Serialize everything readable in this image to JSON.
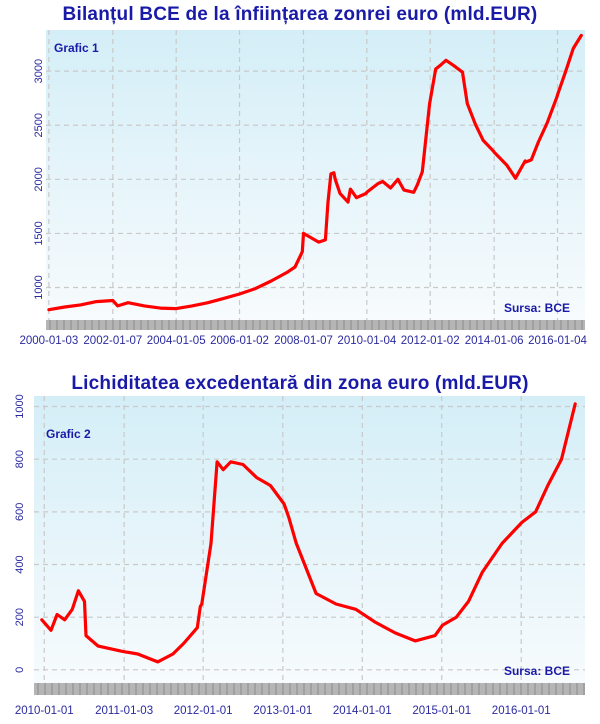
{
  "colors": {
    "line": "#ff0000",
    "plot_bg_top": "#d4eef7",
    "plot_bg_bottom": "#f7fbfd",
    "grid": "#c9c9c9",
    "axis_band": "#b5b5b5",
    "text": "#1a1aa8"
  },
  "chart_data": [
    {
      "type": "line",
      "title": "Bilanțul BCE de la înființarea zonrei euro (mld.EUR)",
      "panel_label": "Grafic 1",
      "source_note": "Sursa: BCE",
      "xlabel": "",
      "ylabel": "",
      "x_ticks": [
        "2000-01-03",
        "2002-01-07",
        "2004-01-05",
        "2006-01-02",
        "2008-01-07",
        "2010-01-04",
        "2012-01-02",
        "2014-01-06",
        "2016-01-04"
      ],
      "y_ticks": [
        1000,
        1500,
        2000,
        2500,
        3000
      ],
      "ylim": [
        700,
        3380
      ],
      "xlim": [
        "1999-12-01",
        "2016-11-15"
      ],
      "grid": true,
      "series": [
        {
          "x": [
            "2000-01-03",
            "2000-07-03",
            "2001-01-01",
            "2001-07-02",
            "2002-01-07",
            "2002-03-04",
            "2002-07-01",
            "2003-01-06",
            "2003-07-07",
            "2004-01-05",
            "2004-07-05",
            "2005-01-03",
            "2005-07-04",
            "2006-01-02",
            "2006-07-03",
            "2007-01-01",
            "2007-07-02",
            "2007-10-01",
            "2007-12-24",
            "2008-01-07",
            "2008-06-30",
            "2008-09-15",
            "2008-10-13",
            "2008-11-17",
            "2008-12-22",
            "2009-01-05",
            "2009-03-02",
            "2009-06-01",
            "2009-06-29",
            "2009-09-07",
            "2009-12-28",
            "2010-01-04",
            "2010-05-10",
            "2010-07-05",
            "2010-10-04",
            "2010-12-27",
            "2011-03-07",
            "2011-06-27",
            "2011-08-08",
            "2011-10-03",
            "2011-12-26",
            "2012-01-02",
            "2012-03-05",
            "2012-05-07",
            "2012-07-02",
            "2012-10-01",
            "2013-01-07",
            "2013-03-04",
            "2013-06-03",
            "2013-09-02",
            "2013-12-30",
            "2014-01-06",
            "2014-06-02",
            "2014-09-08",
            "2014-12-29",
            "2015-01-05",
            "2015-03-09",
            "2015-06-01",
            "2015-09-07",
            "2015-12-28",
            "2016-01-04",
            "2016-04-04",
            "2016-07-04",
            "2016-10-03"
          ],
          "values": [
            795,
            820,
            840,
            870,
            880,
            830,
            860,
            830,
            810,
            805,
            830,
            860,
            900,
            940,
            990,
            1060,
            1140,
            1190,
            1330,
            1500,
            1420,
            1440,
            1780,
            2050,
            2060,
            2000,
            1870,
            1790,
            1910,
            1830,
            1870,
            1880,
            1960,
            1980,
            1920,
            2000,
            1900,
            1880,
            1950,
            2070,
            2700,
            2730,
            3020,
            3060,
            3100,
            3050,
            2990,
            2700,
            2510,
            2360,
            2260,
            2250,
            2130,
            2010,
            2170,
            2160,
            2180,
            2350,
            2520,
            2760,
            2780,
            2990,
            3210,
            3330
          ]
        }
      ]
    },
    {
      "type": "line",
      "title": "Lichiditatea excedentară din zona euro (mld.EUR)",
      "panel_label": "Grafic 2",
      "source_note": "Sursa: BCE",
      "xlabel": "",
      "ylabel": "",
      "x_ticks": [
        "2010-01-01",
        "2011-01-03",
        "2012-01-01",
        "2013-01-01",
        "2014-01-01",
        "2015-01-01",
        "2016-01-01"
      ],
      "y_ticks": [
        0,
        200,
        400,
        600,
        800,
        1000
      ],
      "ylim": [
        -50,
        1040
      ],
      "xlim": [
        "2009-11-15",
        "2016-10-20"
      ],
      "grid": true,
      "series": [
        {
          "x": [
            "2009-12-21",
            "2010-02-01",
            "2010-03-01",
            "2010-04-05",
            "2010-05-10",
            "2010-06-07",
            "2010-07-05",
            "2010-07-12",
            "2010-09-06",
            "2010-12-27",
            "2011-03-07",
            "2011-06-06",
            "2011-08-15",
            "2011-10-03",
            "2011-12-05",
            "2011-12-19",
            "2011-12-26",
            "2012-02-06",
            "2012-03-05",
            "2012-04-02",
            "2012-05-07",
            "2012-07-02",
            "2012-09-03",
            "2012-11-05",
            "2013-01-07",
            "2013-01-28",
            "2013-03-04",
            "2013-06-03",
            "2013-09-02",
            "2013-12-02",
            "2014-03-03",
            "2014-06-02",
            "2014-09-01",
            "2014-12-01",
            "2015-01-05",
            "2015-03-09",
            "2015-05-04",
            "2015-07-06",
            "2015-10-05",
            "2016-01-04",
            "2016-03-07",
            "2016-05-02",
            "2016-07-04",
            "2016-09-05"
          ],
          "values": [
            190,
            150,
            210,
            190,
            230,
            300,
            260,
            130,
            90,
            70,
            60,
            30,
            60,
            100,
            160,
            240,
            250,
            480,
            790,
            760,
            790,
            780,
            730,
            700,
            630,
            580,
            480,
            290,
            250,
            230,
            180,
            140,
            110,
            130,
            170,
            200,
            260,
            370,
            480,
            560,
            600,
            700,
            800,
            1010
          ]
        }
      ]
    }
  ]
}
